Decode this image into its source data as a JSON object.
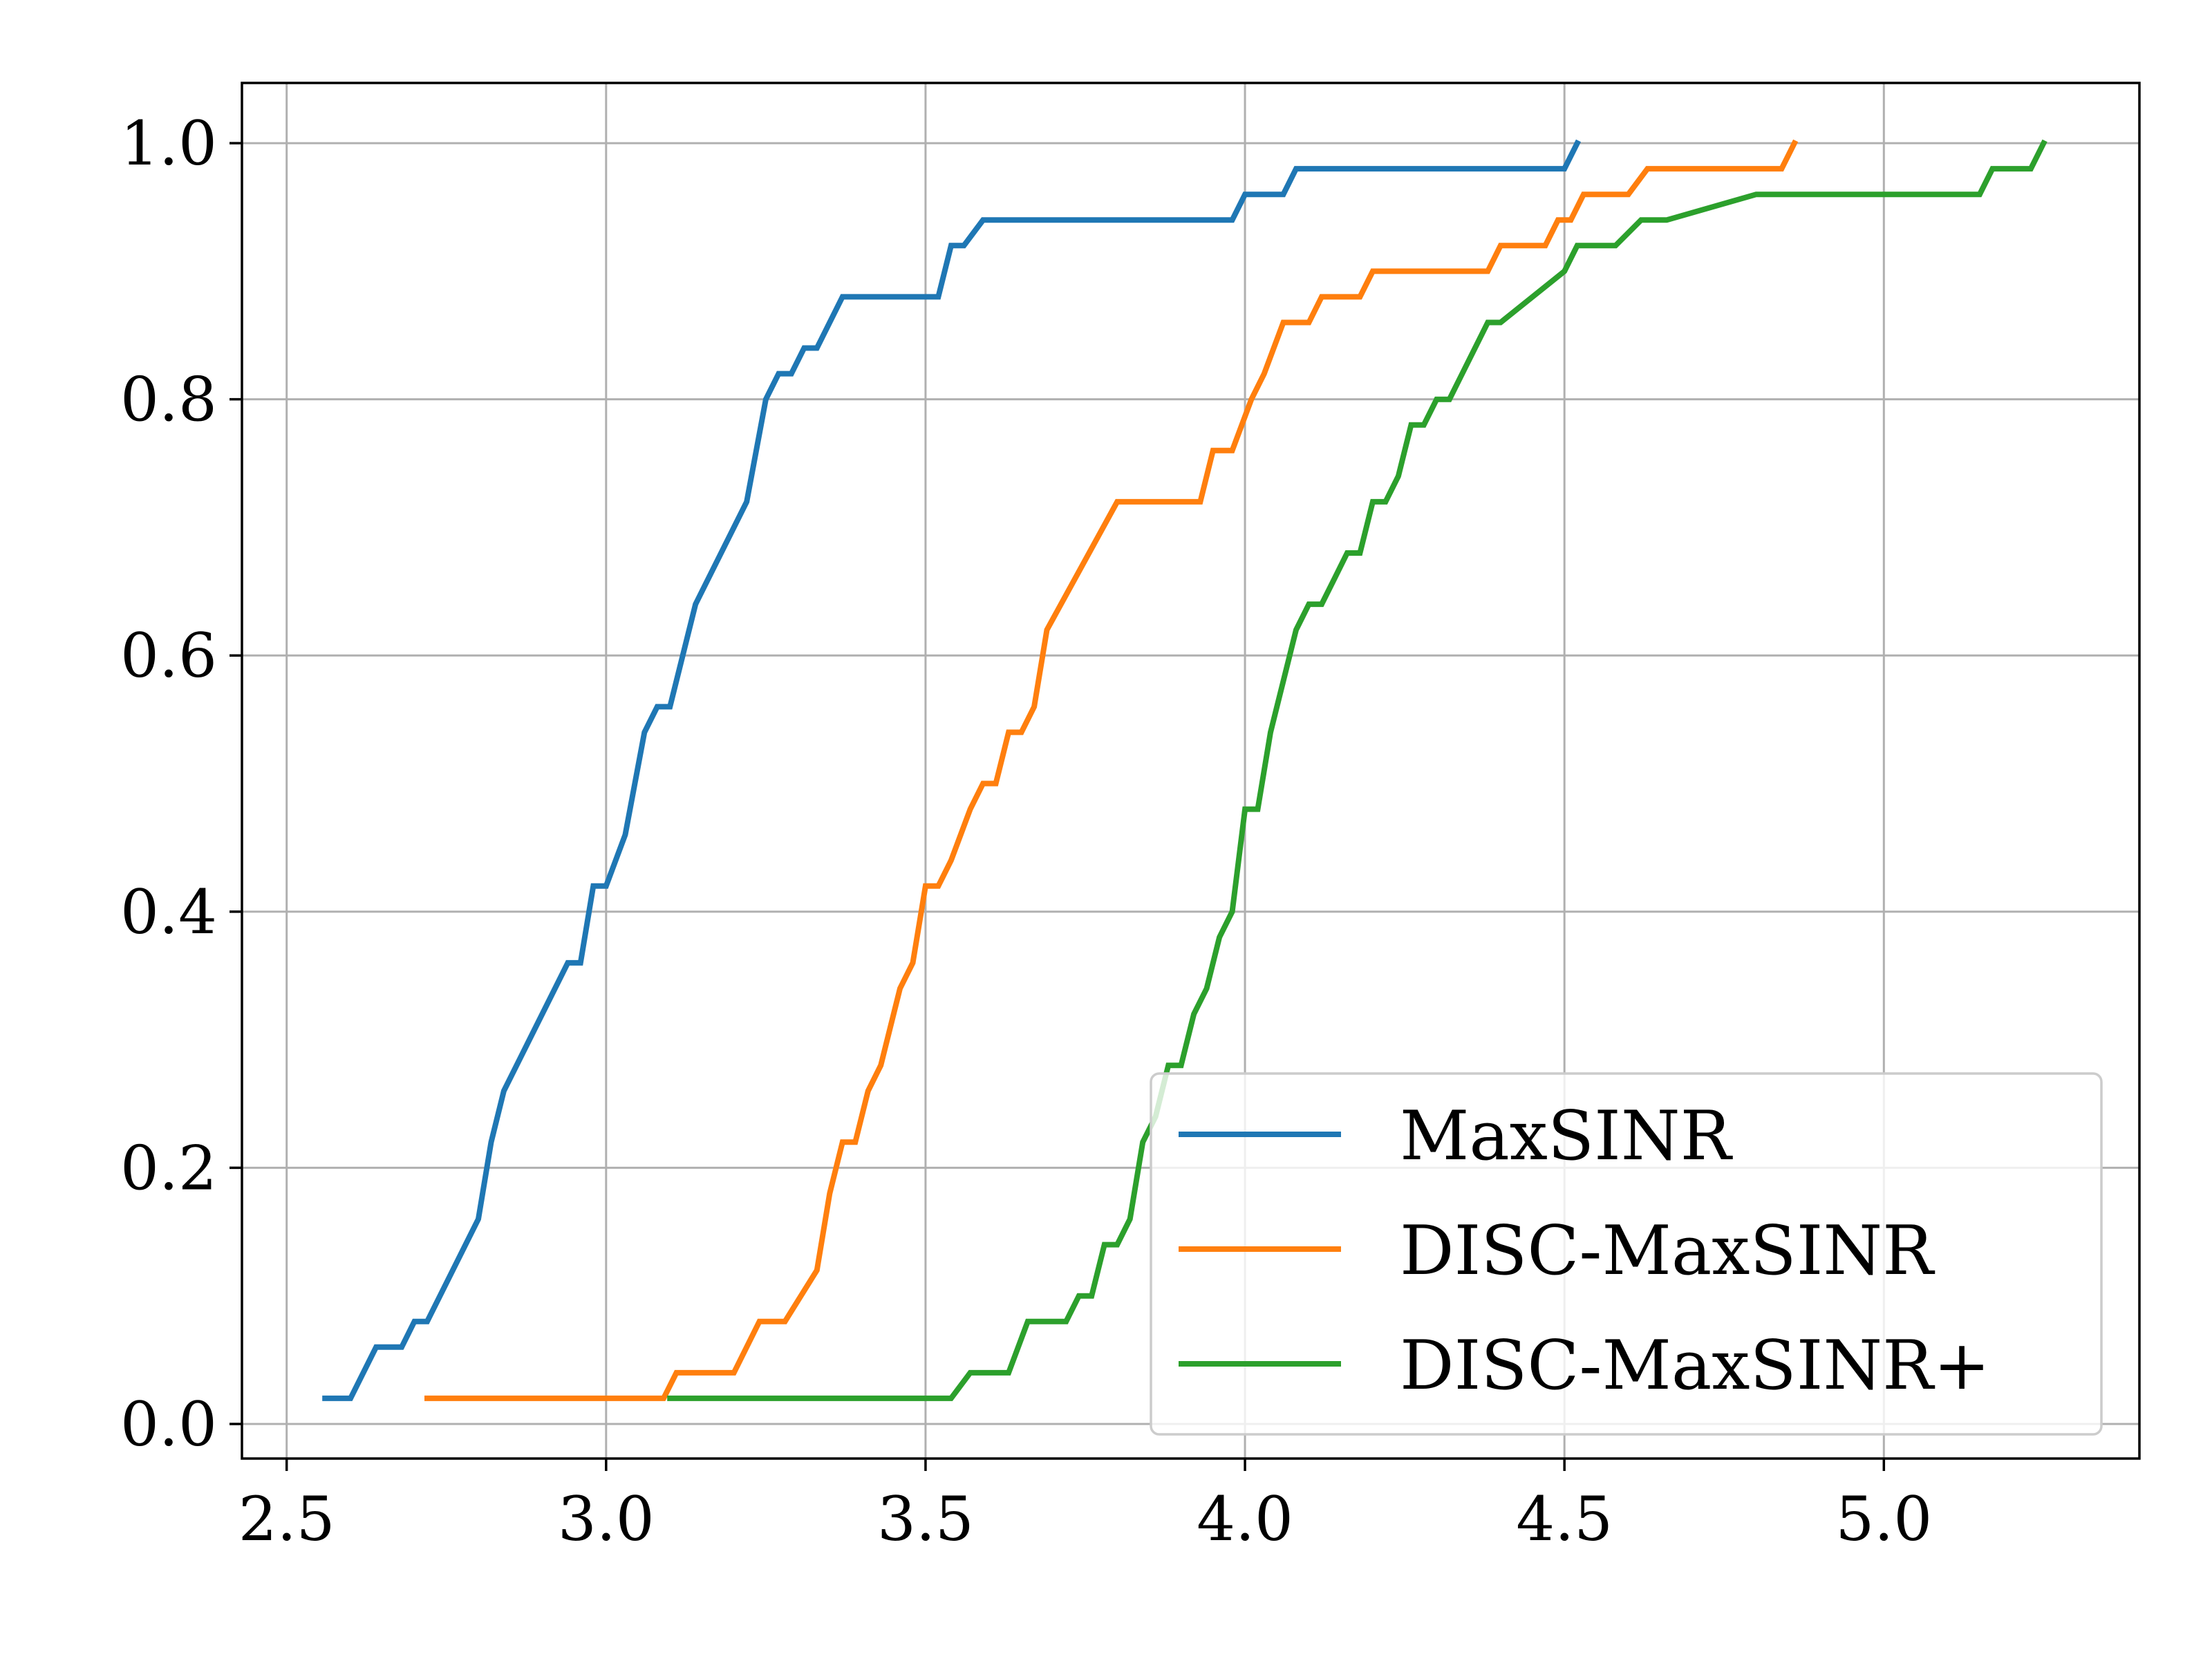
{
  "chart_data": {
    "type": "line",
    "title": "",
    "xlabel": "",
    "ylabel": "",
    "xlim": [
      2.43,
      5.4
    ],
    "ylim": [
      -0.027,
      1.047
    ],
    "grid": true,
    "legend_position": "lower-right",
    "x_ticks": [
      "2.5",
      "3.0",
      "3.5",
      "4.0",
      "4.5",
      "5.0"
    ],
    "y_ticks": [
      "0.0",
      "0.2",
      "0.4",
      "0.6",
      "0.8",
      "1.0"
    ],
    "series": [
      {
        "name": "MaxSINR",
        "color": "#1f77b4",
        "x": [
          2.56,
          2.6,
          2.64,
          2.68,
          2.7,
          2.72,
          2.8,
          2.82,
          2.84,
          2.94,
          2.96,
          2.98,
          3.0,
          3.03,
          3.06,
          3.08,
          3.1,
          3.14,
          3.22,
          3.25,
          3.27,
          3.29,
          3.31,
          3.33,
          3.37,
          3.52,
          3.54,
          3.56,
          3.59,
          3.98,
          4.0,
          4.06,
          4.08,
          4.5,
          4.52
        ],
        "y": [
          0.02,
          0.02,
          0.06,
          0.06,
          0.08,
          0.08,
          0.16,
          0.22,
          0.26,
          0.36,
          0.36,
          0.42,
          0.42,
          0.46,
          0.54,
          0.56,
          0.56,
          0.64,
          0.72,
          0.8,
          0.82,
          0.82,
          0.84,
          0.84,
          0.88,
          0.88,
          0.92,
          0.92,
          0.94,
          0.94,
          0.96,
          0.96,
          0.98,
          0.98,
          1.0
        ]
      },
      {
        "name": "DISC-MaxSINR",
        "color": "#ff7f0e",
        "x": [
          2.72,
          3.09,
          3.11,
          3.2,
          3.24,
          3.28,
          3.33,
          3.35,
          3.37,
          3.39,
          3.41,
          3.43,
          3.46,
          3.48,
          3.5,
          3.52,
          3.54,
          3.57,
          3.59,
          3.61,
          3.63,
          3.65,
          3.67,
          3.69,
          3.8,
          3.93,
          3.95,
          3.98,
          4.01,
          4.03,
          4.06,
          4.1,
          4.12,
          4.18,
          4.2,
          4.38,
          4.4,
          4.47,
          4.49,
          4.51,
          4.53,
          4.6,
          4.63,
          4.84,
          4.86
        ],
        "y": [
          0.02,
          0.02,
          0.04,
          0.04,
          0.08,
          0.08,
          0.12,
          0.18,
          0.22,
          0.22,
          0.26,
          0.28,
          0.34,
          0.36,
          0.42,
          0.42,
          0.44,
          0.48,
          0.5,
          0.5,
          0.54,
          0.54,
          0.56,
          0.62,
          0.72,
          0.72,
          0.76,
          0.76,
          0.8,
          0.82,
          0.86,
          0.86,
          0.88,
          0.88,
          0.9,
          0.9,
          0.92,
          0.92,
          0.94,
          0.94,
          0.96,
          0.96,
          0.98,
          0.98,
          1.0
        ]
      },
      {
        "name": "DISC-MaxSINR+",
        "color": "#2ca02c",
        "x": [
          3.1,
          3.54,
          3.57,
          3.63,
          3.66,
          3.72,
          3.74,
          3.76,
          3.78,
          3.8,
          3.82,
          3.84,
          3.86,
          3.88,
          3.9,
          3.92,
          3.94,
          3.96,
          3.98,
          4.0,
          4.02,
          4.04,
          4.06,
          4.08,
          4.1,
          4.12,
          4.14,
          4.16,
          4.18,
          4.2,
          4.22,
          4.24,
          4.26,
          4.28,
          4.3,
          4.32,
          4.34,
          4.38,
          4.4,
          4.5,
          4.52,
          4.54,
          4.58,
          4.62,
          4.64,
          4.66,
          4.8,
          4.82,
          5.15,
          5.17,
          5.23,
          5.25
        ],
        "y": [
          0.02,
          0.02,
          0.04,
          0.04,
          0.08,
          0.08,
          0.1,
          0.1,
          0.14,
          0.14,
          0.16,
          0.22,
          0.24,
          0.28,
          0.28,
          0.32,
          0.34,
          0.38,
          0.4,
          0.48,
          0.48,
          0.54,
          0.58,
          0.62,
          0.64,
          0.64,
          0.66,
          0.68,
          0.68,
          0.72,
          0.72,
          0.74,
          0.78,
          0.78,
          0.8,
          0.8,
          0.82,
          0.86,
          0.86,
          0.9,
          0.92,
          0.92,
          0.92,
          0.94,
          0.94,
          0.94,
          0.96,
          0.96,
          0.96,
          0.98,
          0.98,
          1.0
        ]
      }
    ]
  }
}
